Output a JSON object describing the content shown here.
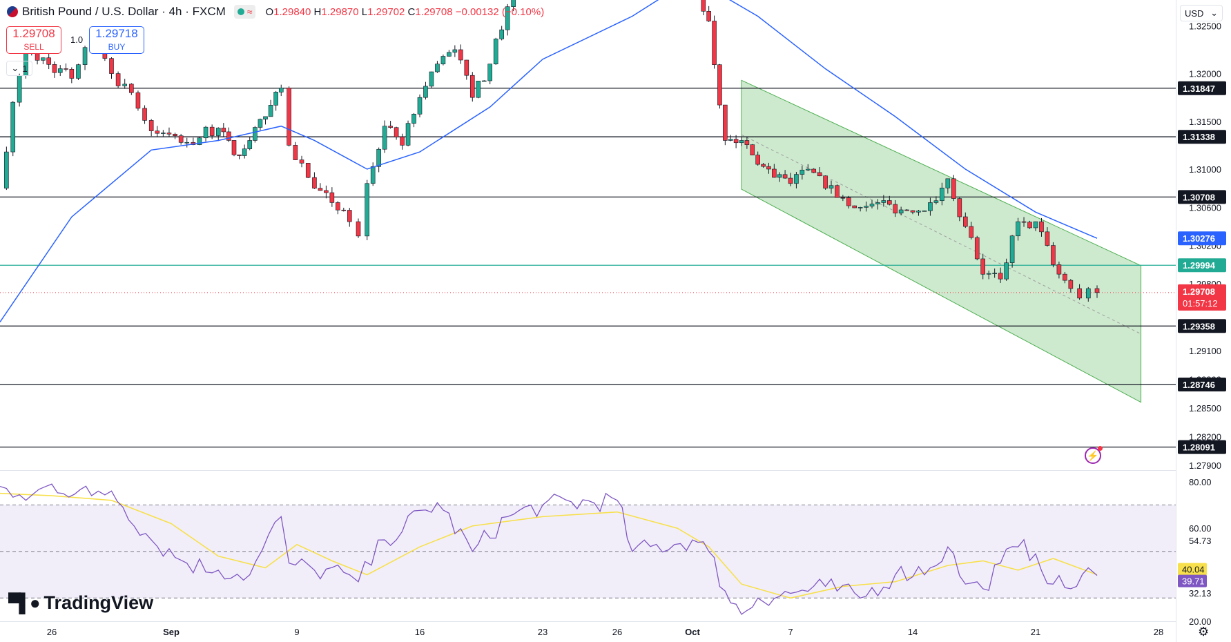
{
  "header": {
    "symbol": "British Pound / U.S. Dollar",
    "interval": "4h",
    "exchange": "FXCM",
    "ohlc": {
      "open": "1.29840",
      "high": "1.29870",
      "low": "1.29702",
      "close": "1.29708",
      "change": "−0.00132",
      "change_pct": "(−0.10%)"
    }
  },
  "trade": {
    "sell_price": "1.29708",
    "sell_label": "SELL",
    "buy_price": "1.29718",
    "buy_label": "BUY",
    "spread": "1.0",
    "quantity": "1"
  },
  "currency": "USD",
  "brand": "TradingView",
  "colors": {
    "up": "#22ab94",
    "down": "#f23645",
    "ma": "#2962ff",
    "rsi": "#7e57c2",
    "rsi_ma": "#f7e04b",
    "channel": "#4caf50"
  },
  "chart_data": [
    {
      "type": "candlestick",
      "title": "British Pound / U.S. Dollar · 4h · FXCM",
      "ylim": [
        1.2785,
        1.3277
      ],
      "price_ticks": [
        "1.32500",
        "1.32000",
        "1.31500",
        "1.31000",
        "1.30600",
        "1.30200",
        "1.29800",
        "1.29100",
        "1.28800",
        "1.28500",
        "1.28200",
        "1.27900"
      ],
      "x_ticks": [
        "26",
        "Sep",
        "9",
        "16",
        "23",
        "26",
        "Oct",
        "7",
        "14",
        "21",
        "28"
      ],
      "levels": [
        {
          "value": 1.31847,
          "label": "1.31847"
        },
        {
          "value": 1.31338,
          "label": "1.31338"
        },
        {
          "value": 1.30708,
          "label": "1.30708"
        },
        {
          "value": 1.29358,
          "label": "1.29358"
        },
        {
          "value": 1.28746,
          "label": "1.28746"
        },
        {
          "value": 1.28091,
          "label": "1.28091"
        }
      ],
      "reference_line": {
        "value": 1.29994,
        "label": "1.29994"
      },
      "ma_value": {
        "value": 1.30276,
        "label": "1.30276"
      },
      "last_price": {
        "value": 1.29708,
        "label": "1.29708",
        "countdown": "01:57:12"
      },
      "channel": {
        "start_date": "Oct 4",
        "end_date": "Oct 27",
        "upper": [
          1.3193,
          1.2999
        ],
        "lower": [
          1.3079,
          1.2856
        ]
      },
      "close_path": [
        {
          "date": "Aug 22",
          "close": 1.308
        },
        {
          "date": "Aug 23",
          "close": 1.317
        },
        {
          "date": "Aug 24",
          "close": 1.3225
        },
        {
          "date": "Aug 27",
          "close": 1.3195
        },
        {
          "date": "Aug 28",
          "close": 1.3245
        },
        {
          "date": "Aug 29",
          "close": 1.32
        },
        {
          "date": "Aug 30",
          "close": 1.318
        },
        {
          "date": "Aug 31",
          "close": 1.314
        },
        {
          "date": "Sep 2",
          "close": 1.3128
        },
        {
          "date": "Sep 4",
          "close": 1.3143
        },
        {
          "date": "Sep 5",
          "close": 1.3115
        },
        {
          "date": "Sep 6",
          "close": 1.313
        },
        {
          "date": "Sep 7",
          "close": 1.3155
        },
        {
          "date": "Sep 8",
          "close": 1.3185
        },
        {
          "date": "Sep 8.5",
          "close": 1.3125
        },
        {
          "date": "Sep 10",
          "close": 1.308
        },
        {
          "date": "Sep 11",
          "close": 1.3065
        },
        {
          "date": "Sep 12",
          "close": 1.3045
        },
        {
          "date": "Sep 12.5",
          "close": 1.303
        },
        {
          "date": "Sep 13",
          "close": 1.3085
        },
        {
          "date": "Sep 14",
          "close": 1.3145
        },
        {
          "date": "Sep 15",
          "close": 1.3125
        },
        {
          "date": "Sep 16",
          "close": 1.3175
        },
        {
          "date": "Sep 17",
          "close": 1.321
        },
        {
          "date": "Sep 18",
          "close": 1.3225
        },
        {
          "date": "Sep 19",
          "close": 1.3175
        },
        {
          "date": "Sep 20",
          "close": 1.321
        },
        {
          "date": "Sep 21",
          "close": 1.327
        },
        {
          "date": "Sep 22",
          "close": 1.33
        },
        {
          "date": "Sep 23",
          "close": 1.332
        },
        {
          "date": "Oct 1",
          "close": 1.329
        },
        {
          "date": "Oct 2",
          "close": 1.3255
        },
        {
          "date": "Oct 3",
          "close": 1.313
        },
        {
          "date": "Oct 4",
          "close": 1.313
        },
        {
          "date": "Oct 5",
          "close": 1.3105
        },
        {
          "date": "Oct 7",
          "close": 1.3085
        },
        {
          "date": "Oct 8",
          "close": 1.31
        },
        {
          "date": "Oct 9",
          "close": 1.308
        },
        {
          "date": "Oct 10",
          "close": 1.307
        },
        {
          "date": "Oct 11",
          "close": 1.306
        },
        {
          "date": "Oct 12",
          "close": 1.3065
        },
        {
          "date": "Oct 14",
          "close": 1.3055
        },
        {
          "date": "Oct 15",
          "close": 1.3065
        },
        {
          "date": "Oct 16",
          "close": 1.309
        },
        {
          "date": "Oct 17",
          "close": 1.304
        },
        {
          "date": "Oct 18",
          "close": 1.299
        },
        {
          "date": "Oct 19",
          "close": 1.2985
        },
        {
          "date": "Oct 20",
          "close": 1.3045
        },
        {
          "date": "Oct 21",
          "close": 1.3045
        },
        {
          "date": "Oct 22",
          "close": 1.3
        },
        {
          "date": "Oct 23",
          "close": 1.2975
        },
        {
          "date": "Oct 23.5",
          "close": 1.2965
        },
        {
          "date": "Oct 24",
          "close": 1.2975
        },
        {
          "date": "Oct 24.5",
          "close": 1.29708
        }
      ],
      "moving_average": [
        {
          "date": "Aug 22",
          "value": 1.294
        },
        {
          "date": "Aug 27",
          "value": 1.305
        },
        {
          "date": "Aug 31",
          "value": 1.312
        },
        {
          "date": "Sep 4",
          "value": 1.313
        },
        {
          "date": "Sep 8",
          "value": 1.3145
        },
        {
          "date": "Sep 10",
          "value": 1.313
        },
        {
          "date": "Sep 13",
          "value": 1.31
        },
        {
          "date": "Sep 16",
          "value": 1.3118
        },
        {
          "date": "Sep 20",
          "value": 1.3165
        },
        {
          "date": "Sep 23",
          "value": 1.3215
        },
        {
          "date": "Sep 27",
          "value": 1.326
        },
        {
          "date": "Oct 1",
          "value": 1.33
        },
        {
          "date": "Oct 5",
          "value": 1.326
        },
        {
          "date": "Oct 9",
          "value": 1.3205
        },
        {
          "date": "Oct 13",
          "value": 1.3155
        },
        {
          "date": "Oct 17",
          "value": 1.31
        },
        {
          "date": "Oct 21",
          "value": 1.3055
        },
        {
          "date": "Oct 24.5",
          "value": 1.30276
        }
      ]
    },
    {
      "type": "line",
      "indicator": "RSI",
      "ylim": [
        20,
        85
      ],
      "y_ticks": [
        "80.00",
        "60.00",
        "54.73",
        "32.13",
        "20.00"
      ],
      "band": [
        30,
        70
      ],
      "middle": 50,
      "rsi_label": "39.71",
      "rsi_ma_label": "40.04",
      "rsi": [
        {
          "date": "Aug 22",
          "value": 78
        },
        {
          "date": "Aug 24",
          "value": 72
        },
        {
          "date": "Aug 26",
          "value": 79
        },
        {
          "date": "Aug 28",
          "value": 74
        },
        {
          "date": "Aug 29",
          "value": 76
        },
        {
          "date": "Aug 31",
          "value": 55
        },
        {
          "date": "Sep 2",
          "value": 45
        },
        {
          "date": "Sep 4",
          "value": 42
        },
        {
          "date": "Sep 6",
          "value": 40
        },
        {
          "date": "Sep 8",
          "value": 65
        },
        {
          "date": "Sep 8.5",
          "value": 45
        },
        {
          "date": "Sep 10",
          "value": 42
        },
        {
          "date": "Sep 12",
          "value": 40
        },
        {
          "date": "Sep 12.5",
          "value": 37
        },
        {
          "date": "Sep 14",
          "value": 55
        },
        {
          "date": "Sep 17",
          "value": 71
        },
        {
          "date": "Sep 19",
          "value": 50
        },
        {
          "date": "Sep 21",
          "value": 65
        },
        {
          "date": "Sep 23",
          "value": 70
        },
        {
          "date": "Sep 26",
          "value": 72
        },
        {
          "date": "Sep 27",
          "value": 50
        },
        {
          "date": "Oct 1",
          "value": 55
        },
        {
          "date": "Oct 2",
          "value": 50
        },
        {
          "date": "Oct 3",
          "value": 33
        },
        {
          "date": "Oct 4",
          "value": 23
        },
        {
          "date": "Oct 5",
          "value": 30
        },
        {
          "date": "Oct 7",
          "value": 32
        },
        {
          "date": "Oct 9",
          "value": 35
        },
        {
          "date": "Oct 11",
          "value": 30
        },
        {
          "date": "Oct 13",
          "value": 40
        },
        {
          "date": "Oct 15",
          "value": 43
        },
        {
          "date": "Oct 16",
          "value": 52
        },
        {
          "date": "Oct 17",
          "value": 36
        },
        {
          "date": "Oct 18",
          "value": 34
        },
        {
          "date": "Oct 19",
          "value": 45
        },
        {
          "date": "Oct 20",
          "value": 52
        },
        {
          "date": "Oct 21",
          "value": 49
        },
        {
          "date": "Oct 22",
          "value": 36
        },
        {
          "date": "Oct 23",
          "value": 34
        },
        {
          "date": "Oct 24",
          "value": 43
        },
        {
          "date": "Oct 24.5",
          "value": 39.71
        }
      ],
      "rsi_ma": [
        {
          "date": "Aug 22",
          "value": 75
        },
        {
          "date": "Aug 26",
          "value": 74
        },
        {
          "date": "Aug 29",
          "value": 72
        },
        {
          "date": "Sep 1",
          "value": 62
        },
        {
          "date": "Sep 4",
          "value": 48
        },
        {
          "date": "Sep 7",
          "value": 43
        },
        {
          "date": "Sep 9",
          "value": 53
        },
        {
          "date": "Sep 11",
          "value": 46
        },
        {
          "date": "Sep 13",
          "value": 40
        },
        {
          "date": "Sep 16",
          "value": 52
        },
        {
          "date": "Sep 19",
          "value": 61
        },
        {
          "date": "Sep 23",
          "value": 65
        },
        {
          "date": "Sep 26",
          "value": 67
        },
        {
          "date": "Sep 30",
          "value": 60
        },
        {
          "date": "Oct 2",
          "value": 52
        },
        {
          "date": "Oct 4",
          "value": 36
        },
        {
          "date": "Oct 7",
          "value": 30
        },
        {
          "date": "Oct 10",
          "value": 35
        },
        {
          "date": "Oct 13",
          "value": 37
        },
        {
          "date": "Oct 16",
          "value": 44
        },
        {
          "date": "Oct 18",
          "value": 46
        },
        {
          "date": "Oct 20",
          "value": 42
        },
        {
          "date": "Oct 22",
          "value": 47
        },
        {
          "date": "Oct 24.5",
          "value": 40.04
        }
      ]
    }
  ]
}
